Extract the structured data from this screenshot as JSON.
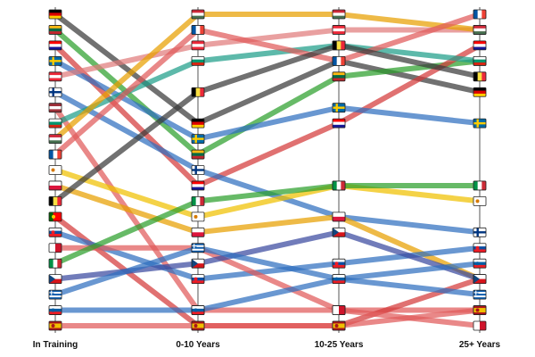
{
  "chart_data": {
    "type": "line",
    "subtype": "bump-chart",
    "title": "",
    "xlabel": "",
    "ylabel": "",
    "categories": [
      "In Training",
      "0-10 Years",
      "10-25 Years",
      "25+ Years"
    ],
    "rank_direction": "top-is-rank-1",
    "colors": {
      "Germany": "#3a3a3a",
      "Lithuania": "#2ca02c",
      "Croatia": "#d43a3a",
      "Sweden": "#2f6fbf",
      "Austria": "#e07b7b",
      "Finland": "#2f6fbf",
      "Latvia": "#e07b7b",
      "Bulgaria": "#1f9e89",
      "Hungary": "#e8a000",
      "France": "#e05a5a",
      "Cyprus": "#f0c000",
      "Poland": "#e8a000",
      "Belgium": "#3a3a3a",
      "Portugal": "#d43a3a",
      "Slovakia": "#2f6fbf",
      "Malta": "#e05a5a",
      "Italy": "#2ca02c",
      "Czechia": "#3a4aa0",
      "Greece": "#2f6fbf",
      "Slovenia": "#2f6fbf",
      "Spain": "#e05a5a",
      "Luxembourg": "#e07b7b",
      "Estonia": "#3a3a3a",
      "Ireland": "#1f9e89",
      "Romania": "#f0c000",
      "Netherlands": "#e8a000",
      "Denmark": "#e05a5a"
    },
    "series": [
      {
        "flag": "germany",
        "ranks": [
          1,
          8,
          4,
          6
        ]
      },
      {
        "flag": "lithuania",
        "ranks": [
          2,
          10,
          5,
          4
        ]
      },
      {
        "flag": "croatia",
        "ranks": [
          3,
          12,
          8,
          3
        ]
      },
      {
        "flag": "sweden",
        "ranks": [
          4,
          9,
          7,
          8
        ]
      },
      {
        "flag": "austria",
        "ranks": [
          5,
          3,
          2,
          2
        ]
      },
      {
        "flag": "finland",
        "ranks": [
          6,
          11,
          14,
          15
        ]
      },
      {
        "flag": "latvia",
        "ranks": [
          7,
          20,
          20,
          20
        ]
      },
      {
        "flag": "bulgaria",
        "ranks": [
          8,
          4,
          3,
          4
        ]
      },
      {
        "flag": "hungary",
        "ranks": [
          9,
          1,
          1,
          2
        ]
      },
      {
        "flag": "france",
        "ranks": [
          10,
          2,
          4,
          1
        ]
      },
      {
        "flag": "cyprus",
        "ranks": [
          11,
          14,
          12,
          13
        ]
      },
      {
        "flag": "poland",
        "ranks": [
          12,
          15,
          14,
          18
        ]
      },
      {
        "flag": "belgium",
        "ranks": [
          13,
          6,
          3,
          5
        ]
      },
      {
        "flag": "portugal",
        "ranks": [
          14,
          21,
          21,
          18
        ]
      },
      {
        "flag": "slovakia",
        "ranks": [
          15,
          18,
          17,
          16
        ]
      },
      {
        "flag": "malta",
        "ranks": [
          16,
          16,
          20,
          21
        ]
      },
      {
        "flag": "italy",
        "ranks": [
          17,
          13,
          12,
          12
        ]
      },
      {
        "flag": "czechia",
        "ranks": [
          18,
          17,
          15,
          18
        ]
      },
      {
        "flag": "greece",
        "ranks": [
          19,
          16,
          18,
          19
        ]
      },
      {
        "flag": "slovenia",
        "ranks": [
          20,
          20,
          18,
          17
        ]
      },
      {
        "flag": "spain",
        "ranks": [
          21,
          21,
          21,
          20
        ]
      }
    ]
  }
}
